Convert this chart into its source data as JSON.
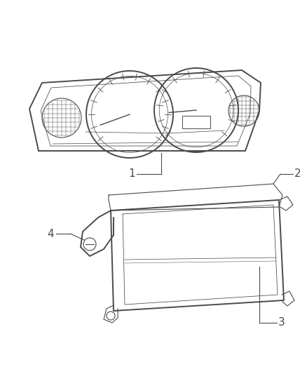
{
  "bg_color": "#ffffff",
  "line_color": "#4a4a4a",
  "fig_width": 4.38,
  "fig_height": 5.33,
  "dpi": 100
}
